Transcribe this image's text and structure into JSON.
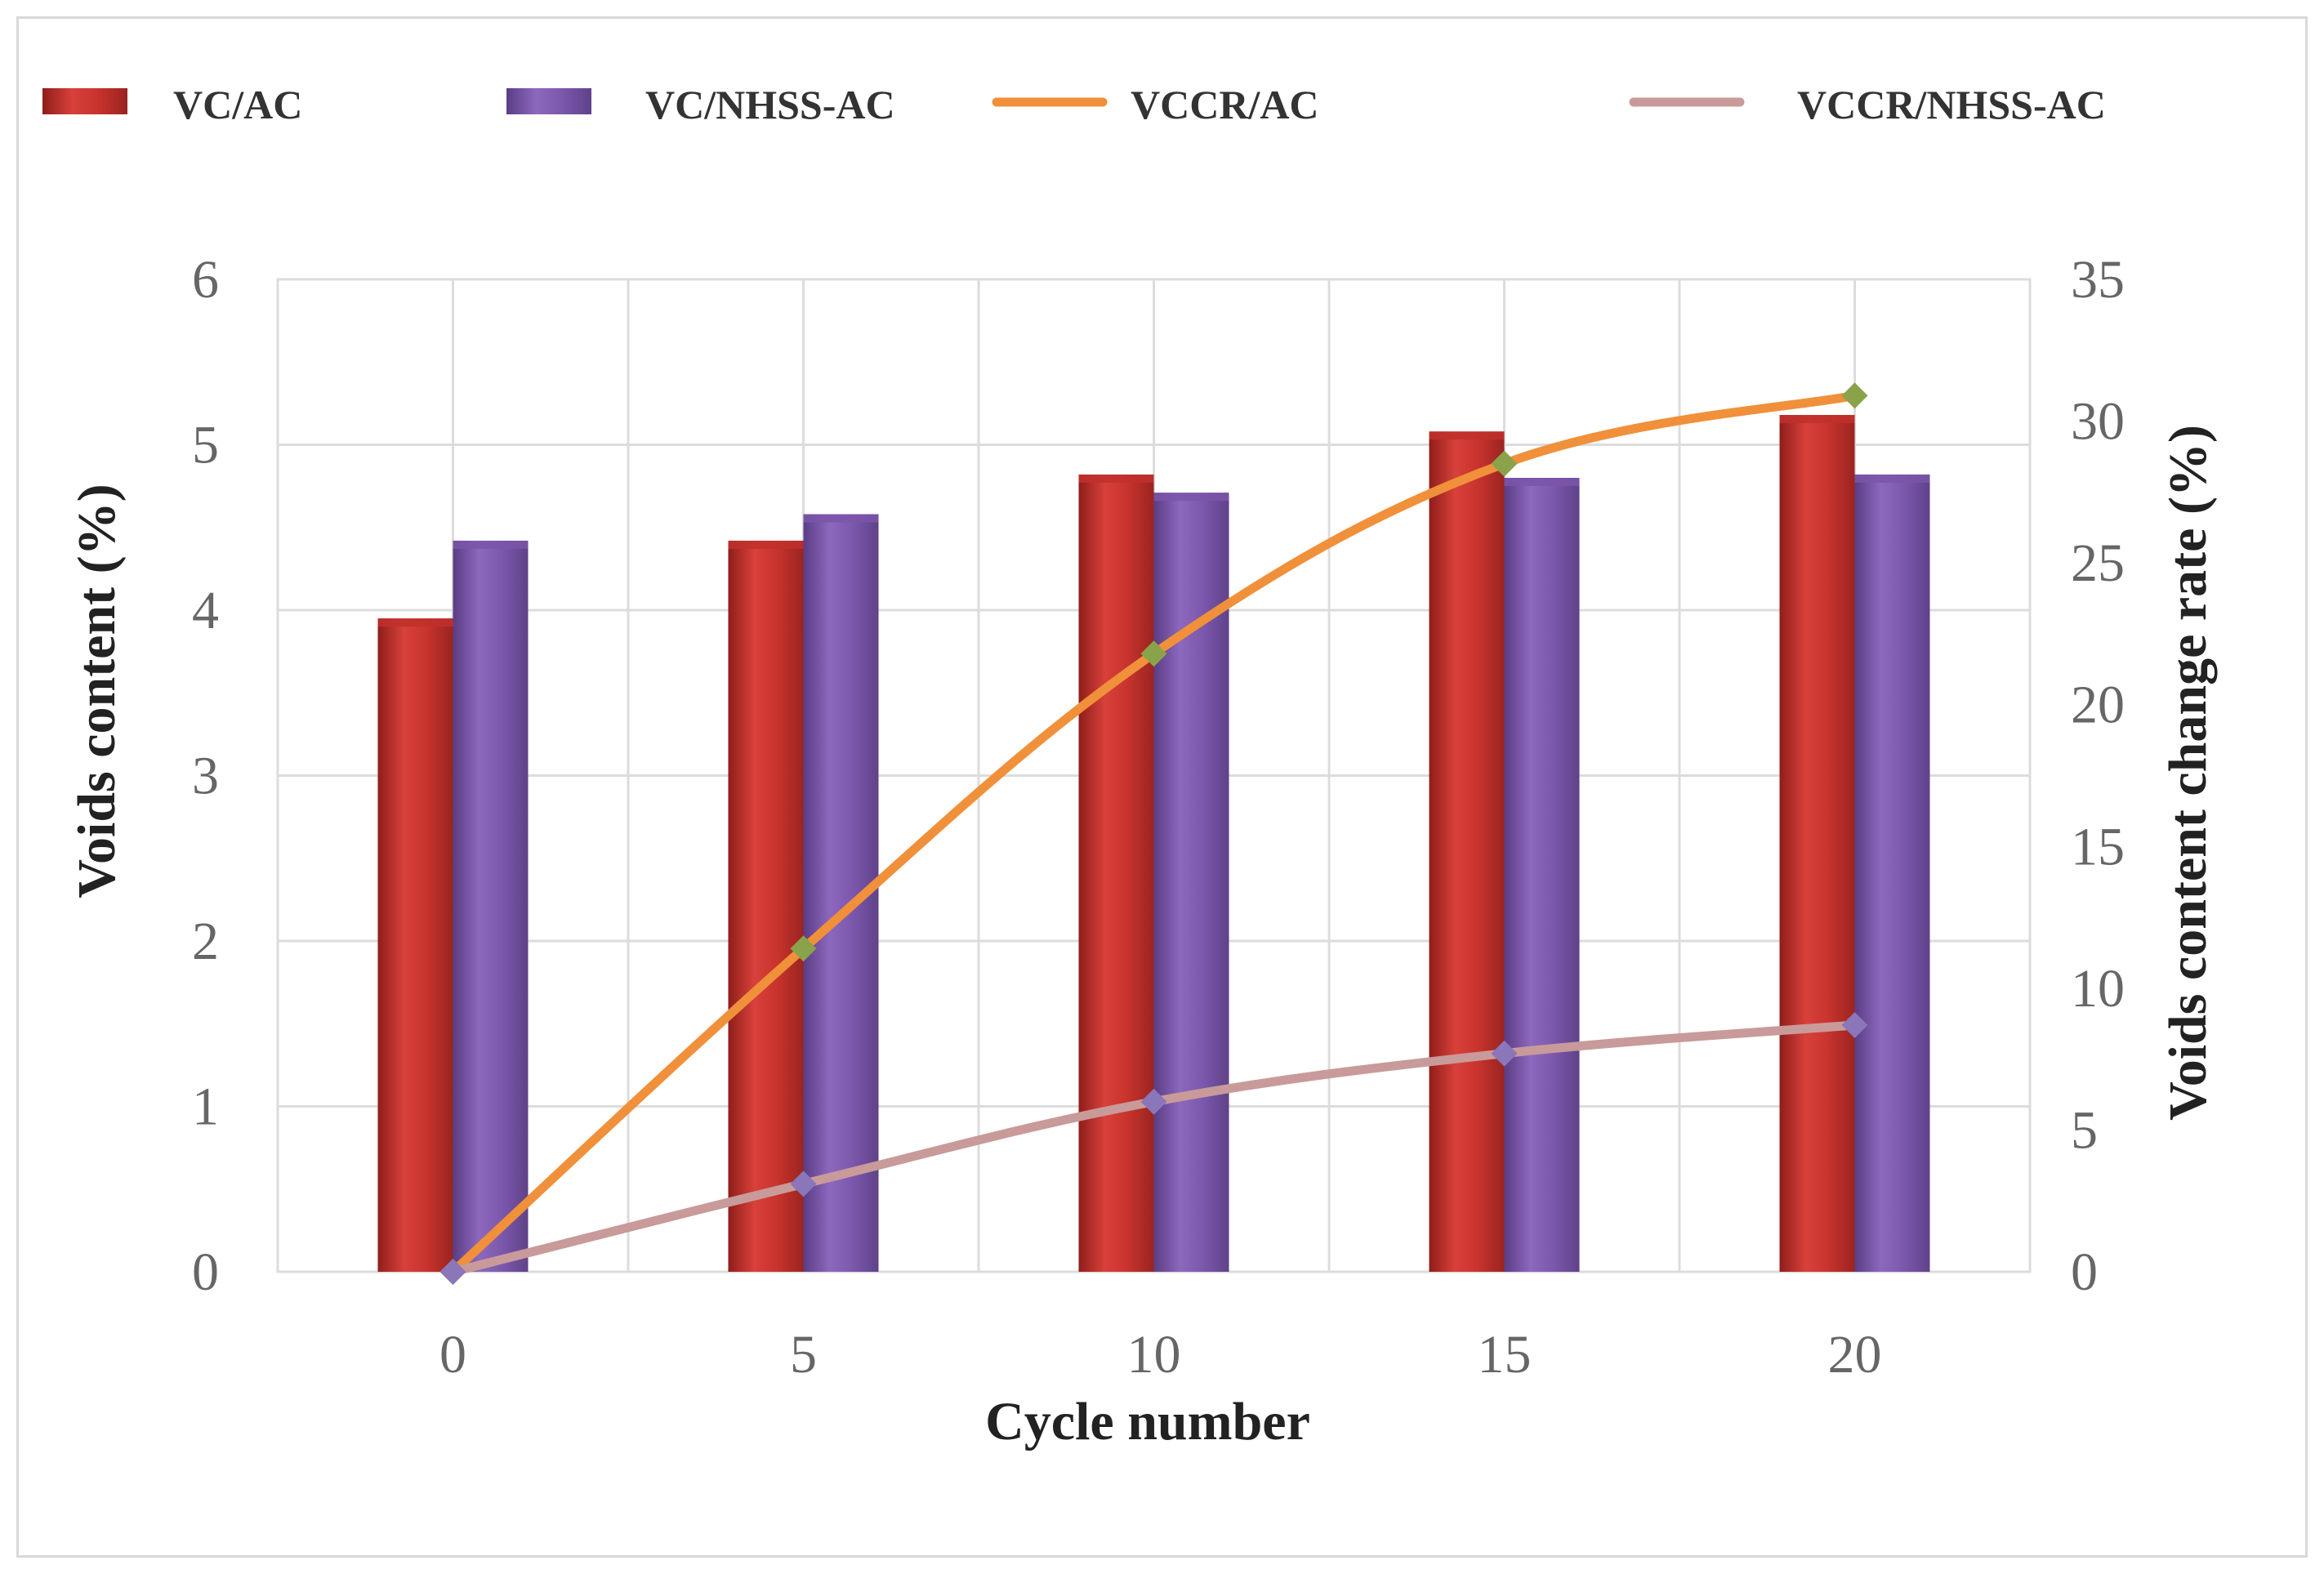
{
  "chart_data": {
    "type": "bar",
    "xlabel": "Cycle number",
    "ylabel": "Voids content (%)",
    "y2label": "Voids content change rate (%)",
    "categories": [
      "0",
      "5",
      "10",
      "15",
      "20"
    ],
    "ylim": [
      0,
      6
    ],
    "y2lim": [
      0,
      35
    ],
    "yticks": [
      "0",
      "1",
      "2",
      "3",
      "4",
      "5",
      "6"
    ],
    "y2ticks": [
      "0",
      "5",
      "10",
      "15",
      "20",
      "25",
      "30",
      "35"
    ],
    "grid": true,
    "legend_position": "top",
    "series": [
      {
        "name": "VC/AC",
        "kind": "bar",
        "axis": "left",
        "color": "#c0302b",
        "values": [
          3.95,
          4.42,
          4.82,
          5.08,
          5.18
        ]
      },
      {
        "name": "VC/NHSS-AC",
        "kind": "bar",
        "axis": "left",
        "color": "#7a55a8",
        "values": [
          4.42,
          4.58,
          4.71,
          4.8,
          4.82
        ]
      },
      {
        "name": "VCCR/AC",
        "kind": "line",
        "axis": "right",
        "color": "#f0903a",
        "marker_color": "#8aa34a",
        "values": [
          0,
          11.4,
          21.8,
          28.5,
          30.9
        ]
      },
      {
        "name": "VCCR/NHSS-AC",
        "kind": "line",
        "axis": "right",
        "color": "#c99a9a",
        "marker_color": "#8a76b8",
        "values": [
          0,
          3.1,
          6.0,
          7.7,
          8.7
        ]
      }
    ]
  }
}
